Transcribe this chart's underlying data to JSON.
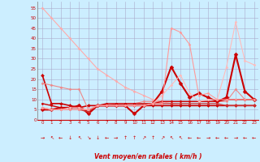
{
  "xlabel": "Vent moyen/en rafales ( km/h )",
  "bg_color": "#cceeff",
  "grid_color": "#aaaacc",
  "xlim": [
    -0.5,
    23.5
  ],
  "ylim": [
    0,
    58
  ],
  "yticks": [
    0,
    5,
    10,
    15,
    20,
    25,
    30,
    35,
    40,
    45,
    50,
    55
  ],
  "xticks": [
    0,
    1,
    2,
    3,
    4,
    5,
    6,
    7,
    8,
    9,
    10,
    11,
    12,
    13,
    14,
    15,
    16,
    17,
    18,
    19,
    20,
    21,
    22,
    23
  ],
  "series": [
    {
      "x": [
        0,
        1,
        2,
        3,
        4,
        5,
        6,
        7,
        8,
        9,
        10,
        11,
        12,
        13,
        14,
        15,
        16,
        17,
        18,
        19,
        20,
        21,
        22,
        23
      ],
      "y": [
        55,
        50,
        45,
        40,
        35,
        30,
        25,
        22,
        19,
        16,
        14,
        12,
        10,
        9,
        8,
        7,
        7,
        7,
        7,
        7,
        7,
        7,
        7,
        7
      ],
      "color": "#ffaaaa",
      "marker": "D",
      "ms": 1.5,
      "lw": 0.8
    },
    {
      "x": [
        0,
        1,
        2,
        3,
        4,
        5,
        6,
        7,
        8,
        9,
        10,
        11,
        12,
        13,
        14,
        15,
        16,
        17,
        18,
        19,
        20,
        21,
        22,
        23
      ],
      "y": [
        22,
        8,
        8,
        7,
        6,
        7,
        7,
        7,
        7,
        7,
        7,
        7,
        7,
        7,
        7,
        7,
        7,
        7,
        7,
        7,
        7,
        7,
        7,
        7
      ],
      "color": "#cc0000",
      "marker": "D",
      "ms": 2.0,
      "lw": 1.2
    },
    {
      "x": [
        0,
        1,
        2,
        3,
        4,
        5,
        6,
        7,
        8,
        9,
        10,
        11,
        12,
        13,
        14,
        15,
        16,
        17,
        18,
        19,
        20,
        21,
        22,
        23
      ],
      "y": [
        18,
        17,
        16,
        15,
        15,
        5,
        7,
        7,
        8,
        8,
        8,
        9,
        9,
        9,
        9,
        9,
        9,
        9,
        9,
        9,
        9,
        15,
        10,
        10
      ],
      "color": "#ee8888",
      "marker": "D",
      "ms": 1.5,
      "lw": 0.8
    },
    {
      "x": [
        0,
        1,
        2,
        3,
        4,
        5,
        6,
        7,
        8,
        9,
        10,
        11,
        12,
        13,
        14,
        15,
        16,
        17,
        18,
        19,
        20,
        21,
        22,
        23
      ],
      "y": [
        5,
        5,
        6,
        6,
        7,
        3,
        7,
        7,
        7,
        7,
        3,
        7,
        8,
        14,
        26,
        18,
        11,
        13,
        11,
        9,
        11,
        32,
        14,
        10
      ],
      "color": "#cc0000",
      "marker": "D",
      "ms": 2.5,
      "lw": 1.5
    },
    {
      "x": [
        0,
        1,
        2,
        3,
        4,
        5,
        6,
        7,
        8,
        9,
        10,
        11,
        12,
        13,
        14,
        15,
        16,
        17,
        18,
        19,
        20,
        21,
        22,
        23
      ],
      "y": [
        8,
        7,
        6,
        6,
        6,
        4,
        7,
        8,
        8,
        8,
        8,
        8,
        8,
        9,
        9,
        9,
        9,
        9,
        9,
        9,
        10,
        10,
        10,
        10
      ],
      "color": "#cc0000",
      "marker": "D",
      "ms": 1.5,
      "lw": 1.0
    },
    {
      "x": [
        0,
        1,
        2,
        3,
        4,
        5,
        6,
        7,
        8,
        9,
        10,
        11,
        12,
        13,
        14,
        15,
        16,
        17,
        18,
        19,
        20,
        21,
        22,
        23
      ],
      "y": [
        6,
        5,
        5,
        5,
        5,
        4,
        7,
        7,
        7,
        7,
        7,
        8,
        8,
        8,
        8,
        8,
        8,
        8,
        8,
        8,
        7,
        7,
        7,
        7
      ],
      "color": "#cc3333",
      "marker": "D",
      "ms": 1.5,
      "lw": 0.9
    },
    {
      "x": [
        0,
        1,
        2,
        3,
        4,
        5,
        6,
        7,
        8,
        9,
        10,
        11,
        12,
        13,
        14,
        15,
        16,
        17,
        18,
        19,
        20,
        21,
        22,
        23
      ],
      "y": [
        6,
        5,
        5,
        6,
        6,
        5,
        7,
        7,
        7,
        7,
        7,
        7,
        8,
        12,
        17,
        22,
        13,
        9,
        10,
        10,
        26,
        48,
        29,
        27
      ],
      "color": "#ffbbbb",
      "marker": "D",
      "ms": 1.5,
      "lw": 0.8
    },
    {
      "x": [
        0,
        1,
        2,
        3,
        4,
        5,
        6,
        7,
        8,
        9,
        10,
        11,
        12,
        13,
        14,
        15,
        16,
        17,
        18,
        19,
        20,
        21,
        22,
        23
      ],
      "y": [
        6,
        5,
        5,
        5,
        5,
        5,
        7,
        7,
        7,
        7,
        7,
        7,
        8,
        8,
        45,
        43,
        37,
        12,
        13,
        10,
        10,
        10,
        10,
        10
      ],
      "color": "#ff9999",
      "marker": "D",
      "ms": 1.5,
      "lw": 0.8
    }
  ],
  "wind_arrows": [
    "→",
    "↖",
    "←",
    "↓",
    "↖",
    "↘",
    "↓",
    "←",
    "→",
    "↑",
    "↑",
    "↗",
    "↑",
    "↗",
    "↖",
    "↖",
    "←",
    "←",
    "→",
    "←",
    "←",
    "→",
    "←",
    "←"
  ]
}
